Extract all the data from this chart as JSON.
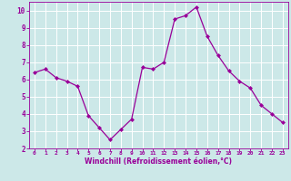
{
  "x": [
    0,
    1,
    2,
    3,
    4,
    5,
    6,
    7,
    8,
    9,
    10,
    11,
    12,
    13,
    14,
    15,
    16,
    17,
    18,
    19,
    20,
    21,
    22,
    23
  ],
  "y": [
    6.4,
    6.6,
    6.1,
    5.9,
    5.6,
    3.9,
    3.2,
    2.5,
    3.1,
    3.7,
    6.7,
    6.6,
    7.0,
    9.5,
    9.7,
    10.2,
    8.5,
    7.4,
    6.5,
    5.9,
    5.5,
    4.5,
    4.0,
    3.5
  ],
  "line_color": "#990099",
  "marker": "D",
  "marker_size": 2,
  "xlabel": "Windchill (Refroidissement éolien,°C)",
  "xlim": [
    -0.5,
    23.5
  ],
  "ylim": [
    2,
    10.5
  ],
  "yticks": [
    2,
    3,
    4,
    5,
    6,
    7,
    8,
    9,
    10
  ],
  "xticks": [
    0,
    1,
    2,
    3,
    4,
    5,
    6,
    7,
    8,
    9,
    10,
    11,
    12,
    13,
    14,
    15,
    16,
    17,
    18,
    19,
    20,
    21,
    22,
    23
  ],
  "background_color": "#cce8e8",
  "grid_color": "#ffffff",
  "tick_color": "#990099",
  "label_color": "#990099"
}
